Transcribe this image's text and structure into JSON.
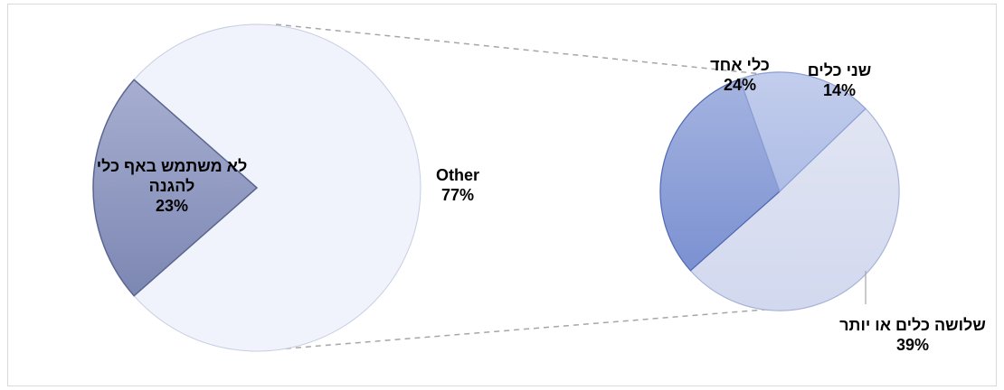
{
  "chart_data": {
    "type": "pie",
    "subtype": "pie-of-pie",
    "title": "",
    "main_pie": {
      "slices": [
        {
          "label_lines": [
            "Other"
          ],
          "value": 77,
          "value_label": "77%",
          "color": "#f0f3fb"
        },
        {
          "label_lines": [
            "לא משתמש באף כלי",
            "להגנה"
          ],
          "value": 23,
          "value_label": "23%",
          "color": "#8d97bd"
        }
      ]
    },
    "secondary_pie": {
      "slices": [
        {
          "label_lines": [
            "שלושה כלים או יותר"
          ],
          "value": 39,
          "value_label": "39%",
          "color": "#d9ddef"
        },
        {
          "label_lines": [
            "כלי אחד"
          ],
          "value": 24,
          "value_label": "24%",
          "color": "#8ea1d8"
        },
        {
          "label_lines": [
            "שני כלים"
          ],
          "value": 14,
          "value_label": "14%",
          "color": "#b6c2e6"
        }
      ]
    },
    "legend": "none"
  }
}
